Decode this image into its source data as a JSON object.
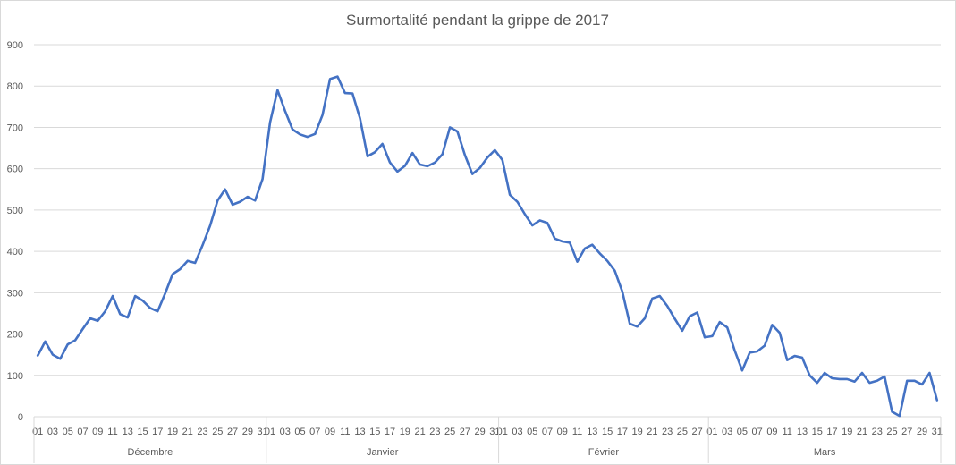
{
  "chart_data": {
    "type": "line",
    "title": "Surmortalité pendant la grippe de 2017",
    "xlabel": "",
    "ylabel": "",
    "ylim": [
      0,
      900
    ],
    "yticks": [
      "0",
      "100",
      "200",
      "300",
      "400",
      "500",
      "600",
      "700",
      "800",
      "900"
    ],
    "grid": true,
    "legend": "none",
    "series_color": "#4472c4",
    "months": [
      {
        "name": "Décembre",
        "days": 31
      },
      {
        "name": "Janvier",
        "days": 31
      },
      {
        "name": "Février",
        "days": 28
      },
      {
        "name": "Mars",
        "days": 31
      }
    ],
    "series": [
      {
        "values": [
          148,
          182,
          150,
          140,
          175,
          185,
          212,
          238,
          232,
          255,
          292,
          248,
          240,
          292,
          281,
          263,
          255,
          298,
          345,
          357,
          377,
          372,
          415,
          462,
          523,
          550,
          513,
          520,
          532,
          523,
          575,
          712,
          790,
          740,
          695,
          683,
          677,
          684,
          730,
          817,
          823,
          783,
          782,
          722,
          630,
          640,
          660,
          615,
          593,
          607,
          638,
          610,
          606,
          615,
          635,
          700,
          690,
          633,
          587,
          602,
          627,
          645,
          621,
          537,
          520,
          490,
          463,
          475,
          469,
          431,
          424,
          421,
          375,
          407,
          416,
          395,
          377,
          353,
          303,
          225,
          218,
          238,
          286,
          292,
          268,
          237,
          208,
          243,
          252,
          192,
          195,
          229,
          216,
          160,
          112,
          155,
          158,
          172,
          222,
          203,
          137,
          147,
          143,
          100,
          82,
          106,
          93,
          91,
          91,
          85,
          106,
          82,
          87,
          97,
          12,
          2,
          87,
          87,
          78,
          106,
          40
        ]
      }
    ]
  }
}
